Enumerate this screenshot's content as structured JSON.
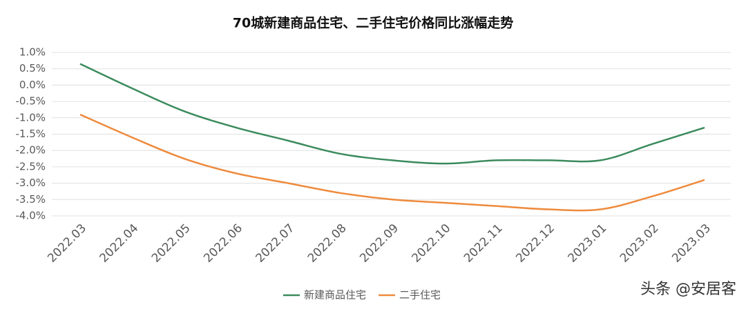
{
  "chart_data": {
    "type": "line",
    "title": "70城新建商品住宅、二手住宅价格同比涨幅走势",
    "categories": [
      "2022.03",
      "2022.04",
      "2022.05",
      "2022.06",
      "2022.07",
      "2022.08",
      "2022.09",
      "2022.10",
      "2022.11",
      "2022.12",
      "2023.01",
      "2023.02",
      "2023.03"
    ],
    "series": [
      {
        "name": "新建商品住宅",
        "color": "#3a8a5c",
        "values": [
          0.65,
          -0.1,
          -0.8,
          -1.3,
          -1.7,
          -2.1,
          -2.3,
          -2.4,
          -2.3,
          -2.3,
          -2.3,
          -1.8,
          -1.3
        ]
      },
      {
        "name": "二手住宅",
        "color": "#ee8a3c",
        "values": [
          -0.9,
          -1.6,
          -2.25,
          -2.7,
          -3.0,
          -3.3,
          -3.5,
          -3.6,
          -3.7,
          -3.8,
          -3.8,
          -3.4,
          -2.9
        ]
      }
    ],
    "ylim": [
      -4.0,
      1.0
    ],
    "yticks": [
      {
        "value": 1.0,
        "label": "1.0%"
      },
      {
        "value": 0.5,
        "label": "0.5%"
      },
      {
        "value": 0.0,
        "label": "0.0%"
      },
      {
        "value": -0.5,
        "label": "-0.5%"
      },
      {
        "value": -1.0,
        "label": "-1.0%"
      },
      {
        "value": -1.5,
        "label": "-1.5%"
      },
      {
        "value": -2.0,
        "label": "-2.0%"
      },
      {
        "value": -2.5,
        "label": "-2.5%"
      },
      {
        "value": -3.0,
        "label": "-3.0%"
      },
      {
        "value": -3.5,
        "label": "-3.5%"
      },
      {
        "value": -4.0,
        "label": "-4.0%"
      }
    ],
    "grid": true,
    "legend": "bottom",
    "watermark": "头条 @安居客"
  }
}
